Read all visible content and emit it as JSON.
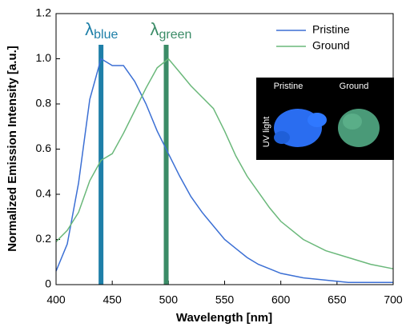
{
  "chart_data": {
    "type": "line",
    "x_label": "Wavelength [nm]",
    "y_label": "Normalized Emission Intensity [a.u.]",
    "x": [
      400,
      410,
      420,
      430,
      440,
      450,
      460,
      470,
      480,
      490,
      500,
      510,
      520,
      530,
      540,
      550,
      560,
      570,
      580,
      590,
      600,
      620,
      640,
      660,
      680,
      700
    ],
    "series": [
      {
        "name": "Pristine",
        "color": "#3b6fd4",
        "values": [
          0.06,
          0.18,
          0.45,
          0.82,
          1.0,
          0.97,
          0.97,
          0.9,
          0.8,
          0.68,
          0.58,
          0.48,
          0.39,
          0.32,
          0.26,
          0.2,
          0.16,
          0.12,
          0.09,
          0.07,
          0.05,
          0.03,
          0.02,
          0.01,
          0.01,
          0.01
        ]
      },
      {
        "name": "Ground",
        "color": "#6ab87a",
        "values": [
          0.19,
          0.24,
          0.32,
          0.46,
          0.55,
          0.58,
          0.67,
          0.77,
          0.87,
          0.96,
          1.0,
          0.94,
          0.88,
          0.83,
          0.78,
          0.68,
          0.57,
          0.48,
          0.41,
          0.34,
          0.28,
          0.2,
          0.15,
          0.12,
          0.09,
          0.07
        ]
      }
    ],
    "xlim": [
      400,
      700
    ],
    "xticks": [
      400,
      450,
      500,
      550,
      600,
      650,
      700
    ],
    "ylim": [
      0,
      1.2
    ],
    "yticks": [
      0,
      0.2,
      0.4,
      0.6,
      0.8,
      {
        "value": 1,
        "label": "1.0"
      },
      1.2
    ],
    "legend": "upper right",
    "markers": [
      {
        "x": 440,
        "symbol": "λ",
        "sub": "blue",
        "color": "#1e7fa8"
      },
      {
        "x": 498,
        "symbol": "λ",
        "sub": "green",
        "color": "#3b8c67"
      }
    ],
    "inset": {
      "columns": [
        "Pristine",
        "Ground"
      ],
      "row_label": "UV light"
    }
  }
}
